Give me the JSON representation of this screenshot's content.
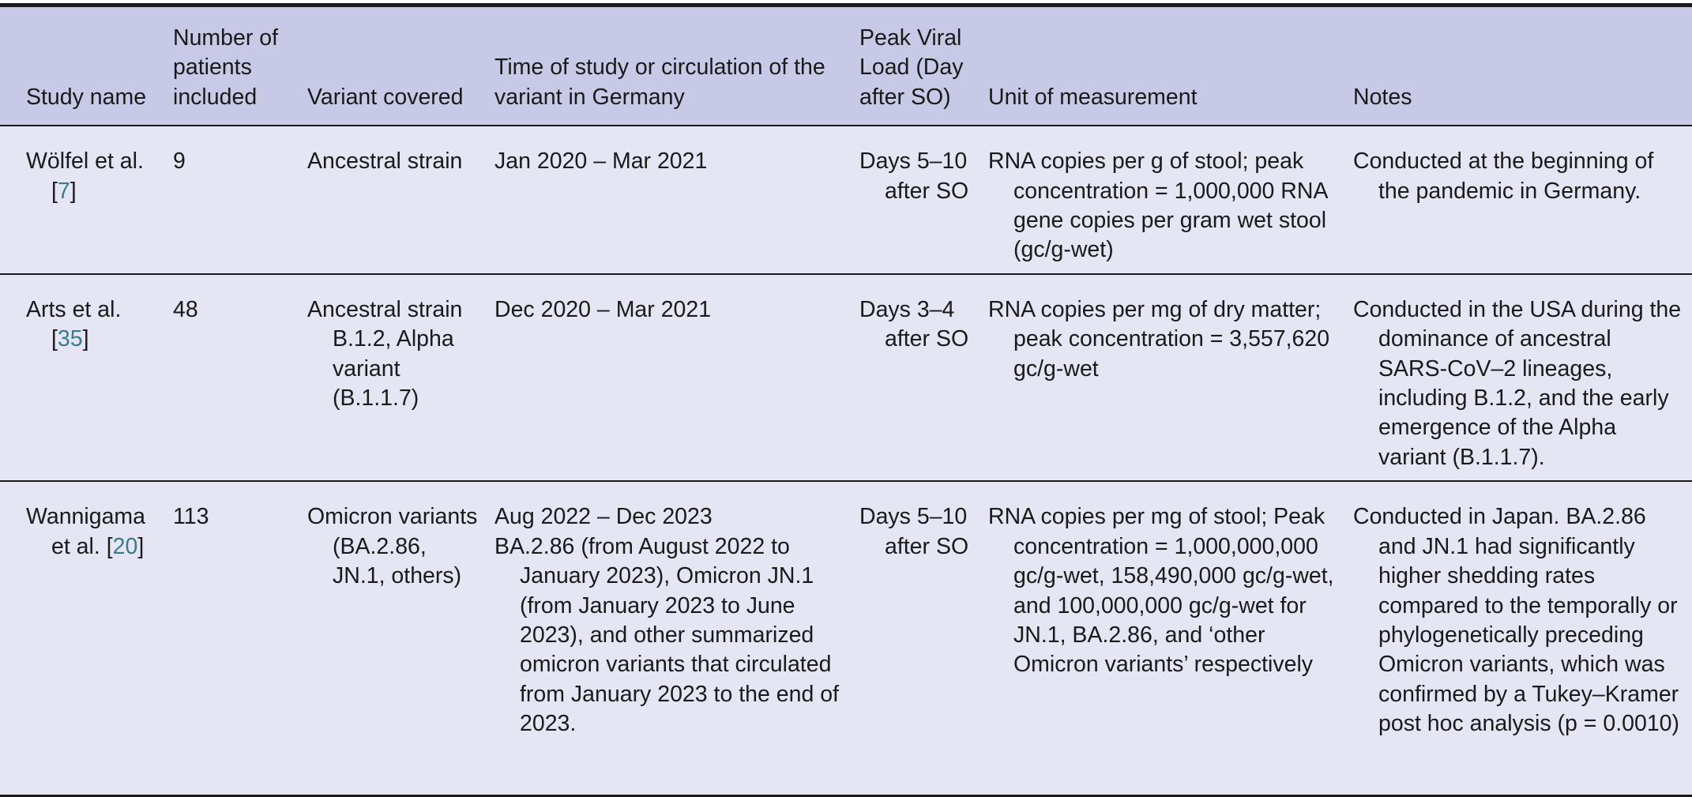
{
  "headers": [
    "Study name",
    "Number of patients included",
    "Variant covered",
    "Time of study or circulation of the variant in Germany",
    "Peak Viral Load (Day after SO)",
    "Unit of measurement",
    "Notes"
  ],
  "rows": [
    {
      "study": "Wölfel et al.",
      "ref": "7",
      "patients": "9",
      "variant": "Ancestral strain",
      "time": [
        "Jan 2020 – Mar 2021"
      ],
      "peak": "Days 5–10 after SO",
      "unit": "RNA copies per g of stool; peak concentration = 1,000,000 RNA gene copies per gram wet stool (gc/g-wet)",
      "notes": "Conducted at the beginning of the pandemic in Germany."
    },
    {
      "study": "Arts et al.",
      "ref": "35",
      "patients": "48",
      "variant": "Ancestral strain B.1.2, Alpha variant (B.1.1.7)",
      "time": [
        "Dec 2020 – Mar 2021"
      ],
      "peak": "Days 3–4 after SO",
      "unit": "RNA copies per mg of dry matter; peak concentration = 3,557,620 gc/g-wet",
      "notes": "Conducted in the USA during the dominance of ancestral SARS-CoV–2 lineages, including B.1.2, and the early emergence of the Alpha variant (B.1.1.7)."
    },
    {
      "study": "Wannigama et al.",
      "ref": "20",
      "patients": "113",
      "variant": "Omicron variants (BA.2.86, JN.1, others)",
      "time": [
        "Aug 2022 – Dec 2023",
        "BA.2.86 (from August 2022 to January 2023), Omicron JN.1 (from January 2023 to June 2023), and other summarized omicron variants that circulated from January 2023 to the end of 2023."
      ],
      "peak": "Days 5–10 after SO",
      "unit": "RNA copies per mg of stool; Peak concentration = 1,000,000,000 gc/g-wet, 158,490,000 gc/g-wet, and 100,000,000 gc/g-wet for JN.1, BA.2.86, and ‘other Omicron variants’ respectively",
      "notes": "Conducted in Japan. BA.2.86 and JN.1 had significantly higher shedding rates compared to the temporally or phylogenetically preceding Omicron variants, which was confirmed by a Tukey–Kramer post hoc analysis (p = 0.0010)"
    }
  ]
}
